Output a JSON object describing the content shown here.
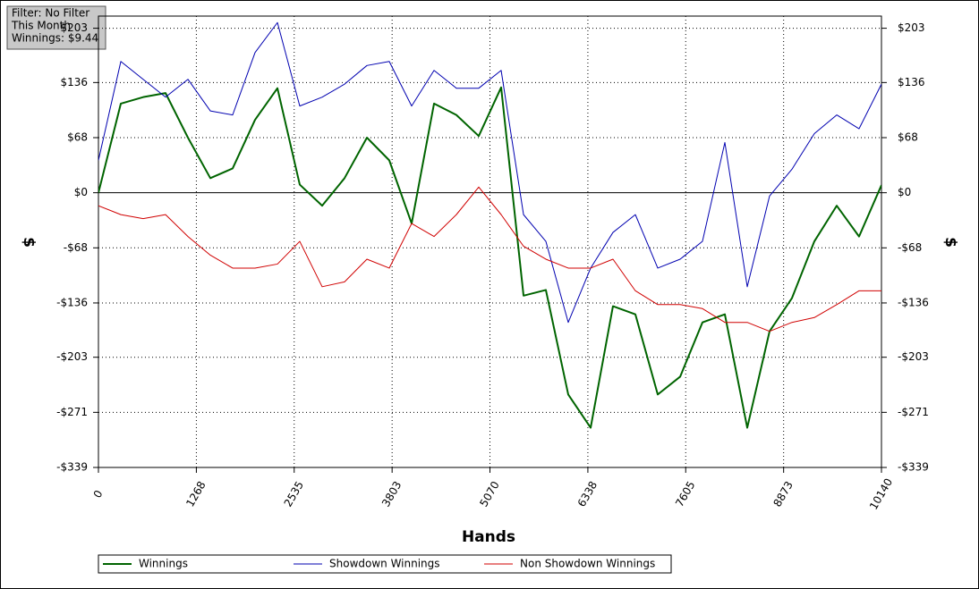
{
  "chart_data": {
    "type": "line",
    "annotations": [
      "Filter: No Filter",
      "This Month",
      "Winnings: $9.44"
    ],
    "x_label": "Hands",
    "y_label": "$",
    "y2_label": "$",
    "grid": true,
    "xlim": [
      0,
      10140
    ],
    "xticks": [
      0,
      1268,
      2535,
      3803,
      5070,
      6338,
      7605,
      8873,
      10140
    ],
    "ylim": [
      -339,
      218
    ],
    "yticks": [
      {
        "value": -339,
        "label": "-$339"
      },
      {
        "value": -271,
        "label": "-$271"
      },
      {
        "value": -203,
        "label": "-$203"
      },
      {
        "value": -136,
        "label": "-$136"
      },
      {
        "value": -68,
        "label": "-$68"
      },
      {
        "value": 0,
        "label": "$0"
      },
      {
        "value": 68,
        "label": "$68"
      },
      {
        "value": 136,
        "label": "$136"
      },
      {
        "value": 203,
        "label": "$203"
      }
    ],
    "y2lim": [
      -339,
      218
    ],
    "y2ticks": [
      {
        "value": -339,
        "label": "-$339"
      },
      {
        "value": -271,
        "label": "-$271"
      },
      {
        "value": -203,
        "label": "-$203"
      },
      {
        "value": -136,
        "label": "-$136"
      },
      {
        "value": -68,
        "label": "-$68"
      },
      {
        "value": 0,
        "label": "$0"
      },
      {
        "value": 68,
        "label": "$68"
      },
      {
        "value": 136,
        "label": "$136"
      },
      {
        "value": 203,
        "label": "$203"
      }
    ],
    "x": [
      0,
      290,
      579,
      869,
      1159,
      1449,
      1738,
      2028,
      2318,
      2607,
      2897,
      3187,
      3477,
      3766,
      4056,
      4346,
      4635,
      4925,
      5215,
      5505,
      5794,
      6084,
      6374,
      6663,
      6953,
      7243,
      7533,
      7822,
      8112,
      8402,
      8691,
      8981,
      9271,
      9561,
      9850,
      10140
    ],
    "series": [
      {
        "name": "Winnings",
        "color": "#006400",
        "width": 2,
        "values": [
          0,
          110,
          118,
          123,
          68,
          18,
          30,
          90,
          129,
          10,
          -16,
          18,
          68,
          40,
          -38,
          110,
          96,
          70,
          130,
          -127,
          -120,
          -249,
          -290,
          -140,
          -150,
          -249,
          -227,
          -160,
          -150,
          -290,
          -171,
          -130,
          -60,
          -16,
          -54,
          9.44
        ]
      },
      {
        "name": "Showdown Winnings",
        "color": "#0000b0",
        "width": 1,
        "values": [
          40,
          162,
          140,
          118,
          140,
          101,
          96,
          173,
          210,
          107,
          118,
          134,
          157,
          162,
          107,
          151,
          129,
          129,
          151,
          -27,
          -60,
          -160,
          -93,
          -49,
          -27,
          -93,
          -82,
          -60,
          62,
          -116,
          -4,
          29,
          73,
          96,
          79,
          134
        ]
      },
      {
        "name": "Non Showdown Winnings",
        "color": "#d00000",
        "width": 1,
        "values": [
          -16,
          -27,
          -32,
          -27,
          -54,
          -77,
          -93,
          -93,
          -88,
          -60,
          -116,
          -110,
          -82,
          -93,
          -38,
          -54,
          -27,
          7,
          -27,
          -66,
          -82,
          -93,
          -93,
          -82,
          -121,
          -138,
          -138,
          -143,
          -160,
          -160,
          -171,
          -160,
          -154,
          -138,
          -121,
          -121
        ]
      }
    ]
  }
}
